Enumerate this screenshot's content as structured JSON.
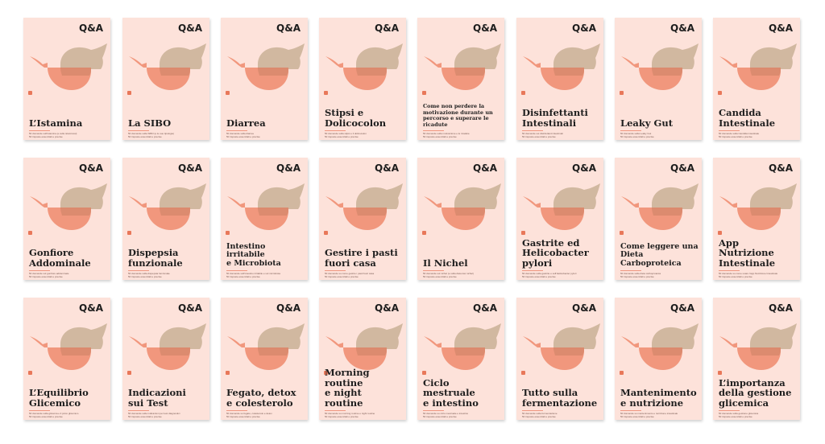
{
  "badge": "Q&A",
  "colors": {
    "background": "#ffffff",
    "card": "#fde2da",
    "coral": "#ef8a6c",
    "taupe": "#cfb59d",
    "text": "#1e1e1e"
  },
  "icon": "speech-bubbles-icon",
  "cards": [
    {
      "title": [
        "L’Istamina"
      ],
      "lines": [
        "50 domande sull'istamina (e sulle istaminosi)",
        "50 risposte essenziali e precise"
      ]
    },
    {
      "title": [
        "La SIBO"
      ],
      "lines": [
        "50 domande sulla SIBO (e le sue tipologie)",
        "50 risposte essenziali e precise"
      ]
    },
    {
      "title": [
        "Diarrea"
      ],
      "lines": [
        "50 domande sulla diarrea",
        "50 risposte essenziali e precise"
      ]
    },
    {
      "title": [
        "Stipsi e",
        "Dolicocolon"
      ],
      "lines": [
        "50 domande sulla stipsi e il dolicocolon",
        "50 risposte essenziali e precise"
      ]
    },
    {
      "title": [
        "Come non perdere la",
        "motivazione durante un",
        "percorso e superare le ricadute"
      ],
      "size": "xs",
      "lines": [
        "50 domande sulla motivazione e le ricadute",
        "50 risposte essenziali e precise"
      ]
    },
    {
      "title": [
        "Disinfettanti",
        "Intestinali"
      ],
      "lines": [
        "50 domande sui disinfettanti intestinali",
        "50 risposte essenziali e precise"
      ]
    },
    {
      "title": [
        "Leaky Gut"
      ],
      "lines": [
        "50 domande sulla Leaky Gut",
        "50 risposte essenziali e precise"
      ]
    },
    {
      "title": [
        "Candida",
        "Intestinale"
      ],
      "lines": [
        "50 domande sulla Candida intestinale",
        "50 risposte essenziali e precise"
      ]
    },
    {
      "title": [
        "Gonfiore",
        "Addominale"
      ],
      "lines": [
        "50 domande sul gonfiore addominale",
        "50 risposte essenziali e precise"
      ]
    },
    {
      "title": [
        "Dispepsia",
        "funzionale"
      ],
      "lines": [
        "50 domande sulla dispepsia funzionale",
        "50 risposte essenziali e precise"
      ]
    },
    {
      "title": [
        "Intestino irritabile",
        "e Microbiota"
      ],
      "size": "sm",
      "lines": [
        "50 domande sull'intestino irritabile e sul microbiota",
        "50 risposte essenziali e precise"
      ]
    },
    {
      "title": [
        "Gestire i pasti",
        "fuori casa"
      ],
      "lines": [
        "50 domande su come gestire i pasti fuori casa",
        "50 risposte essenziali e precise"
      ]
    },
    {
      "title": [
        "Il Nichel"
      ],
      "lines": [
        "50 domande sul nichel (e sulla dieta low nichel)",
        "50 risposte essenziali e precise"
      ]
    },
    {
      "title": [
        "Gastrite ed",
        "Helicobacter",
        "pylori"
      ],
      "lines": [
        "50 domande sulla gastrite e sull'Helicobacter pylori",
        "50 risposte essenziali e precise"
      ]
    },
    {
      "title": [
        "Come leggere una",
        "Dieta Carboproteica"
      ],
      "size": "sm",
      "lines": [
        "50 domande sulla dieta carboproteica",
        "50 risposte essenziali e precise"
      ]
    },
    {
      "title": [
        "App Nutrizione",
        "Intestinale"
      ],
      "lines": [
        "50 domande su come usare l'app Nutrizione Intestinale",
        "50 risposte essenziali e precise"
      ]
    },
    {
      "title": [
        "L’Equilibrio",
        "Glicemico"
      ],
      "lines": [
        "50 domande sulla glicemia e il picco glicemico",
        "50 risposte essenziali e precise"
      ]
    },
    {
      "title": [
        "Indicazioni",
        "sui Test"
      ],
      "lines": [
        "50 domande sulle indicazioni per test diagnostici",
        "50 risposte essenziali e precise"
      ]
    },
    {
      "title": [
        "Fegato, detox",
        "e colesterolo"
      ],
      "lines": [
        "50 domande su fegato, colesterolo e detox",
        "50 risposte essenziali e precise"
      ]
    },
    {
      "title": [
        "Morning routine",
        "e night routine"
      ],
      "lines": [
        "50 domande su morning routine e night routine",
        "50 risposte essenziali e precise"
      ]
    },
    {
      "title": [
        "Ciclo mestruale",
        "e intestino"
      ],
      "lines": [
        "50 domande su ciclo mestruale e intestino",
        "50 risposte essenziali e precise"
      ]
    },
    {
      "title": [
        "Tutto sulla",
        "fermentazione"
      ],
      "lines": [
        "50 domande sulla fermentazione",
        "50 risposte essenziali e precise"
      ]
    },
    {
      "title": [
        "Mantenimento",
        "e nutrizione"
      ],
      "lines": [
        "50 domande su mantenimento e nutrizione intestinale",
        "50 risposte essenziali e precise"
      ]
    },
    {
      "title": [
        "L’importanza",
        "della gestione",
        "glicemica"
      ],
      "lines": [
        "50 domande sulla gestione glicemica",
        "50 risposte essenziali e precise"
      ]
    }
  ]
}
